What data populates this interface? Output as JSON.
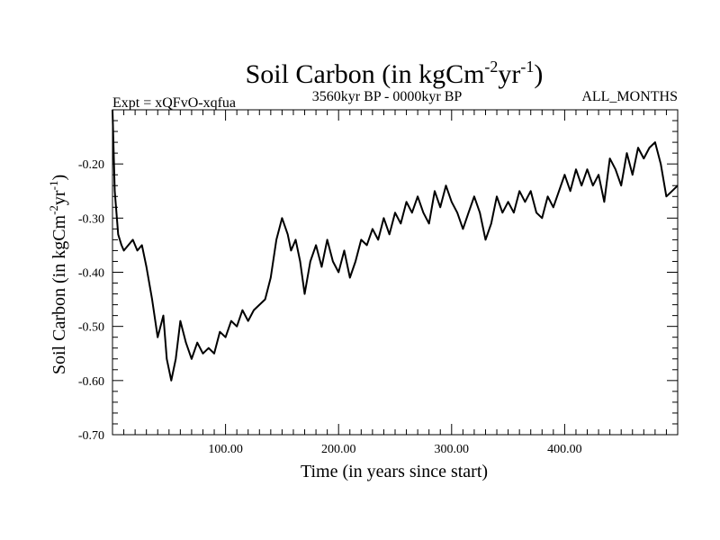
{
  "chart_data": {
    "type": "line",
    "title": "Soil Carbon (in kgCm",
    "title_sup1": "-2",
    "title_mid": "yr",
    "title_sup2": "-1",
    "title_end": ")",
    "subtitle_left": "Expt = xQFvO-xqfua",
    "subtitle_center": "3560kyr BP - 0000kyr BP",
    "subtitle_right": "ALL_MONTHS",
    "xlabel": "Time (in years since start)",
    "ylabel": "Soil Carbon (in kgCm",
    "ylabel_sup1": "-2",
    "ylabel_mid": "yr",
    "ylabel_sup2": "-1",
    "ylabel_end": ")",
    "xlim": [
      0,
      500
    ],
    "ylim": [
      -0.7,
      -0.1
    ],
    "x_ticks": [
      100,
      200,
      300,
      400
    ],
    "x_tick_labels": [
      "100.00",
      "200.00",
      "300.00",
      "400.00"
    ],
    "y_ticks": [
      -0.7,
      -0.6,
      -0.5,
      -0.4,
      -0.3,
      -0.2
    ],
    "y_tick_labels": [
      "-0.70",
      "-0.60",
      "-0.50",
      "-0.40",
      "-0.30",
      "-0.20"
    ],
    "series": [
      {
        "name": "Soil Carbon",
        "color": "#000000",
        "x": [
          0,
          2,
          5,
          8,
          10,
          14,
          18,
          22,
          26,
          30,
          35,
          40,
          45,
          48,
          52,
          56,
          60,
          65,
          70,
          75,
          80,
          85,
          90,
          95,
          100,
          105,
          110,
          115,
          120,
          125,
          130,
          135,
          140,
          145,
          150,
          155,
          158,
          162,
          166,
          170,
          175,
          180,
          185,
          190,
          195,
          200,
          205,
          210,
          215,
          220,
          225,
          230,
          235,
          240,
          245,
          250,
          255,
          260,
          265,
          270,
          275,
          280,
          285,
          290,
          295,
          300,
          305,
          310,
          315,
          320,
          325,
          330,
          335,
          340,
          345,
          350,
          355,
          360,
          365,
          370,
          375,
          380,
          385,
          390,
          395,
          400,
          405,
          410,
          415,
          420,
          425,
          430,
          435,
          440,
          445,
          450,
          455,
          460,
          465,
          470,
          475,
          480,
          485,
          490,
          495,
          500
        ],
        "y": [
          -0.1,
          -0.25,
          -0.33,
          -0.35,
          -0.36,
          -0.35,
          -0.34,
          -0.36,
          -0.35,
          -0.39,
          -0.45,
          -0.52,
          -0.48,
          -0.56,
          -0.6,
          -0.56,
          -0.49,
          -0.53,
          -0.56,
          -0.53,
          -0.55,
          -0.54,
          -0.55,
          -0.51,
          -0.52,
          -0.49,
          -0.5,
          -0.47,
          -0.49,
          -0.47,
          -0.46,
          -0.45,
          -0.41,
          -0.34,
          -0.3,
          -0.33,
          -0.36,
          -0.34,
          -0.38,
          -0.44,
          -0.38,
          -0.35,
          -0.39,
          -0.34,
          -0.38,
          -0.4,
          -0.36,
          -0.41,
          -0.38,
          -0.34,
          -0.35,
          -0.32,
          -0.34,
          -0.3,
          -0.33,
          -0.29,
          -0.31,
          -0.27,
          -0.29,
          -0.26,
          -0.29,
          -0.31,
          -0.25,
          -0.28,
          -0.24,
          -0.27,
          -0.29,
          -0.32,
          -0.29,
          -0.26,
          -0.29,
          -0.34,
          -0.31,
          -0.26,
          -0.29,
          -0.27,
          -0.29,
          -0.25,
          -0.27,
          -0.25,
          -0.29,
          -0.3,
          -0.26,
          -0.28,
          -0.25,
          -0.22,
          -0.25,
          -0.21,
          -0.24,
          -0.21,
          -0.24,
          -0.22,
          -0.27,
          -0.19,
          -0.21,
          -0.24,
          -0.18,
          -0.22,
          -0.17,
          -0.19,
          -0.17,
          -0.16,
          -0.2,
          -0.26,
          -0.25,
          -0.24
        ]
      }
    ]
  }
}
